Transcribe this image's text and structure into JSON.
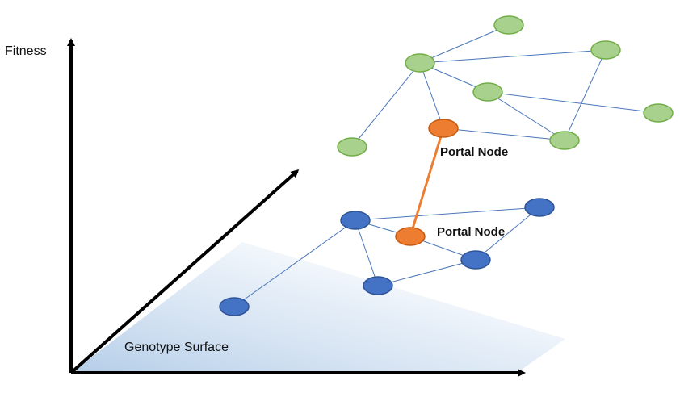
{
  "labels": {
    "y_axis": "Fitness",
    "surface": "Genotype Surface",
    "portal_upper": "Portal Node",
    "portal_lower": "Portal Node"
  },
  "colors": {
    "upper_node_fill": "#a9d18e",
    "upper_node_stroke": "#70ad47",
    "lower_node_fill": "#4472c4",
    "lower_node_stroke": "#2f5597",
    "portal_fill": "#ed7d31",
    "portal_stroke": "#c55a11",
    "edge": "#4a76b8",
    "portal_edge": "#ed7d31",
    "axis": "#000000",
    "surface_gradient_start": "#b4cde8"
  },
  "networks": {
    "upper": {
      "nodes": [
        "u1",
        "u2",
        "u3",
        "u4",
        "u5",
        "u6",
        "u7",
        "portal_upper"
      ],
      "edges": [
        [
          "u2",
          "u1"
        ],
        [
          "u2",
          "u3"
        ],
        [
          "u2",
          "u4"
        ],
        [
          "u2",
          "u6"
        ],
        [
          "u2",
          "portal_upper"
        ],
        [
          "u4",
          "u5"
        ],
        [
          "u4",
          "u7"
        ],
        [
          "u3",
          "u7"
        ],
        [
          "portal_upper",
          "u7"
        ]
      ]
    },
    "lower": {
      "nodes": [
        "l1",
        "l2",
        "l3",
        "l4",
        "l5",
        "portal_lower"
      ],
      "edges": [
        [
          "l1",
          "l2"
        ],
        [
          "l2",
          "l3"
        ],
        [
          "l2",
          "l4"
        ],
        [
          "l2",
          "portal_lower"
        ],
        [
          "portal_lower",
          "l5"
        ],
        [
          "l4",
          "l5"
        ],
        [
          "l5",
          "l3"
        ]
      ]
    },
    "portal_link": [
      "portal_upper",
      "portal_lower"
    ]
  }
}
